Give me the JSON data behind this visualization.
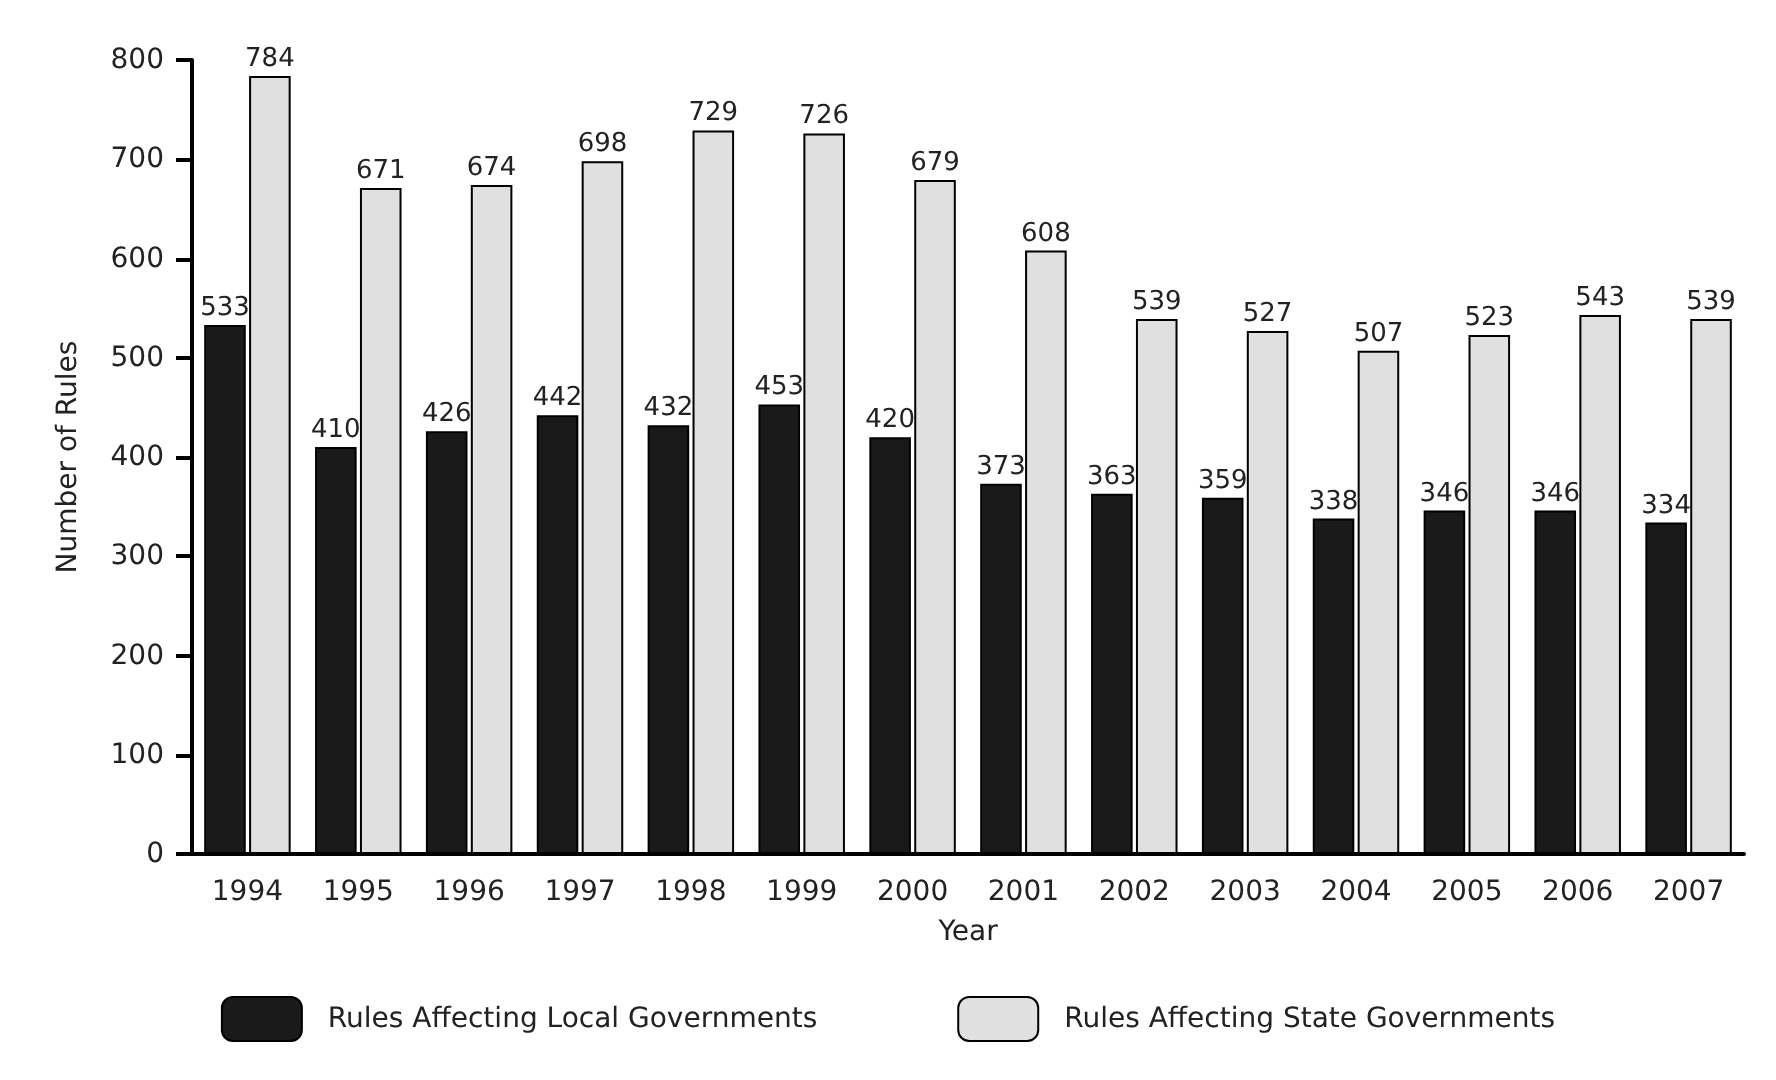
{
  "chart_data": {
    "type": "bar",
    "xlabel": "Year",
    "ylabel": "Number of Rules",
    "categories": [
      "1994",
      "1995",
      "1996",
      "1997",
      "1998",
      "1999",
      "2000",
      "2001",
      "2002",
      "2003",
      "2004",
      "2005",
      "2006",
      "2007"
    ],
    "series": [
      {
        "name": "Rules Affecting Local Governments",
        "color": "#1a1a1a",
        "values": [
          533,
          410,
          426,
          442,
          432,
          453,
          420,
          373,
          363,
          359,
          338,
          346,
          346,
          334
        ]
      },
      {
        "name": "Rules Affecting State Governments",
        "color": "#e0e0e0",
        "values": [
          784,
          671,
          674,
          698,
          729,
          726,
          679,
          608,
          539,
          527,
          507,
          523,
          543,
          539
        ]
      }
    ],
    "ylim": [
      0,
      800
    ],
    "yticks": [
      0,
      100,
      200,
      300,
      400,
      500,
      600,
      700,
      800
    ],
    "grid": false,
    "legend": "bottom",
    "data_labels": true
  }
}
